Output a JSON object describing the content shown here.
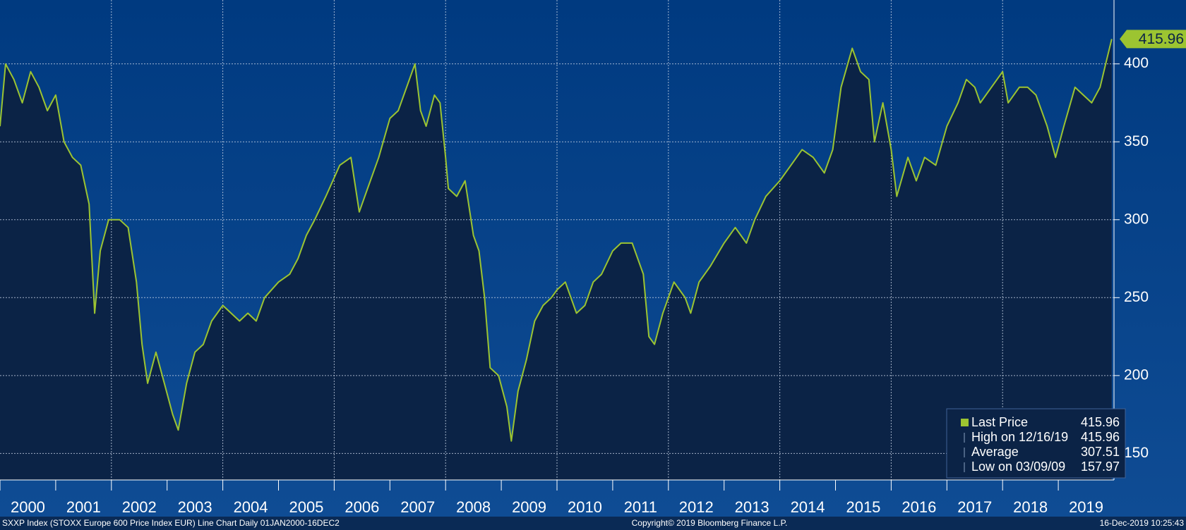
{
  "chart_data": {
    "type": "line",
    "series": [
      {
        "name": "Last Price",
        "color": "#9cc431",
        "x": [
          2000.0,
          2000.1,
          2000.25,
          2000.4,
          2000.55,
          2000.7,
          2000.85,
          2001.0,
          2001.15,
          2001.3,
          2001.45,
          2001.6,
          2001.7,
          2001.8,
          2001.95,
          2002.15,
          2002.3,
          2002.45,
          2002.55,
          2002.65,
          2002.8,
          2002.95,
          2003.1,
          2003.2,
          2003.35,
          2003.5,
          2003.65,
          2003.8,
          2004.0,
          2004.15,
          2004.3,
          2004.45,
          2004.6,
          2004.75,
          2005.0,
          2005.2,
          2005.35,
          2005.5,
          2005.65,
          2005.85,
          2006.1,
          2006.3,
          2006.45,
          2006.6,
          2006.8,
          2007.0,
          2007.15,
          2007.3,
          2007.45,
          2007.55,
          2007.65,
          2007.8,
          2007.9,
          2008.0,
          2008.05,
          2008.2,
          2008.35,
          2008.5,
          2008.6,
          2008.7,
          2008.8,
          2008.95,
          2009.1,
          2009.18,
          2009.3,
          2009.45,
          2009.6,
          2009.75,
          2009.9,
          2010.0,
          2010.15,
          2010.35,
          2010.5,
          2010.65,
          2010.8,
          2011.0,
          2011.15,
          2011.35,
          2011.55,
          2011.65,
          2011.75,
          2011.9,
          2012.1,
          2012.3,
          2012.4,
          2012.55,
          2012.75,
          2013.0,
          2013.2,
          2013.4,
          2013.55,
          2013.75,
          2014.0,
          2014.2,
          2014.4,
          2014.6,
          2014.8,
          2014.95,
          2015.1,
          2015.3,
          2015.45,
          2015.6,
          2015.7,
          2015.85,
          2016.0,
          2016.1,
          2016.3,
          2016.45,
          2016.6,
          2016.8,
          2017.0,
          2017.2,
          2017.35,
          2017.5,
          2017.6,
          2017.8,
          2018.0,
          2018.1,
          2018.3,
          2018.45,
          2018.6,
          2018.8,
          2018.95,
          2019.1,
          2019.3,
          2019.45,
          2019.6,
          2019.75,
          2019.85,
          2019.96
        ],
        "values": [
          360,
          400,
          390,
          375,
          395,
          385,
          370,
          380,
          350,
          340,
          335,
          310,
          240,
          280,
          300,
          300,
          295,
          260,
          220,
          195,
          215,
          195,
          175,
          165,
          195,
          215,
          220,
          235,
          245,
          240,
          235,
          240,
          235,
          250,
          260,
          265,
          275,
          290,
          300,
          315,
          335,
          340,
          305,
          320,
          340,
          365,
          370,
          385,
          400,
          370,
          360,
          380,
          375,
          340,
          320,
          315,
          325,
          290,
          280,
          250,
          205,
          200,
          180,
          158,
          190,
          210,
          235,
          245,
          250,
          255,
          260,
          240,
          245,
          260,
          265,
          280,
          285,
          285,
          265,
          225,
          220,
          240,
          260,
          250,
          240,
          260,
          270,
          285,
          295,
          285,
          300,
          315,
          325,
          335,
          345,
          340,
          330,
          345,
          385,
          410,
          395,
          390,
          350,
          375,
          345,
          315,
          340,
          325,
          340,
          335,
          360,
          375,
          390,
          385,
          375,
          385,
          395,
          375,
          385,
          385,
          380,
          360,
          340,
          360,
          385,
          380,
          375,
          385,
          400,
          415.96
        ]
      }
    ],
    "xlim": [
      2000,
      2020
    ],
    "xticks": [
      2002,
      2004,
      2006,
      2008,
      2010,
      2012,
      2014,
      2016,
      2018,
      2020
    ],
    "xlabels": [
      2000,
      2001,
      2002,
      2003,
      2004,
      2005,
      2006,
      2007,
      2008,
      2009,
      2010,
      2011,
      2012,
      2013,
      2014,
      2015,
      2016,
      2017,
      2018,
      2019
    ],
    "ylim": [
      133,
      441
    ],
    "yticks": [
      150,
      200,
      250,
      300,
      350,
      400
    ],
    "grid": true,
    "legend": [
      {
        "label": "Last Price",
        "value": 415.96
      },
      {
        "label": "High on 12/16/19",
        "value": 415.96
      },
      {
        "label": "Average",
        "value": 307.51
      },
      {
        "label": "Low on 03/09/09",
        "value": 157.97
      }
    ],
    "footer_left": "SXXP Index (STOXX Europe 600 Price Index EUR) Line Chart  Daily 01JAN2000-16DEC2",
    "footer_center": "Copyright© 2019 Bloomberg Finance L.P.",
    "footer_right": "16-Dec-2019 10:25:43"
  }
}
